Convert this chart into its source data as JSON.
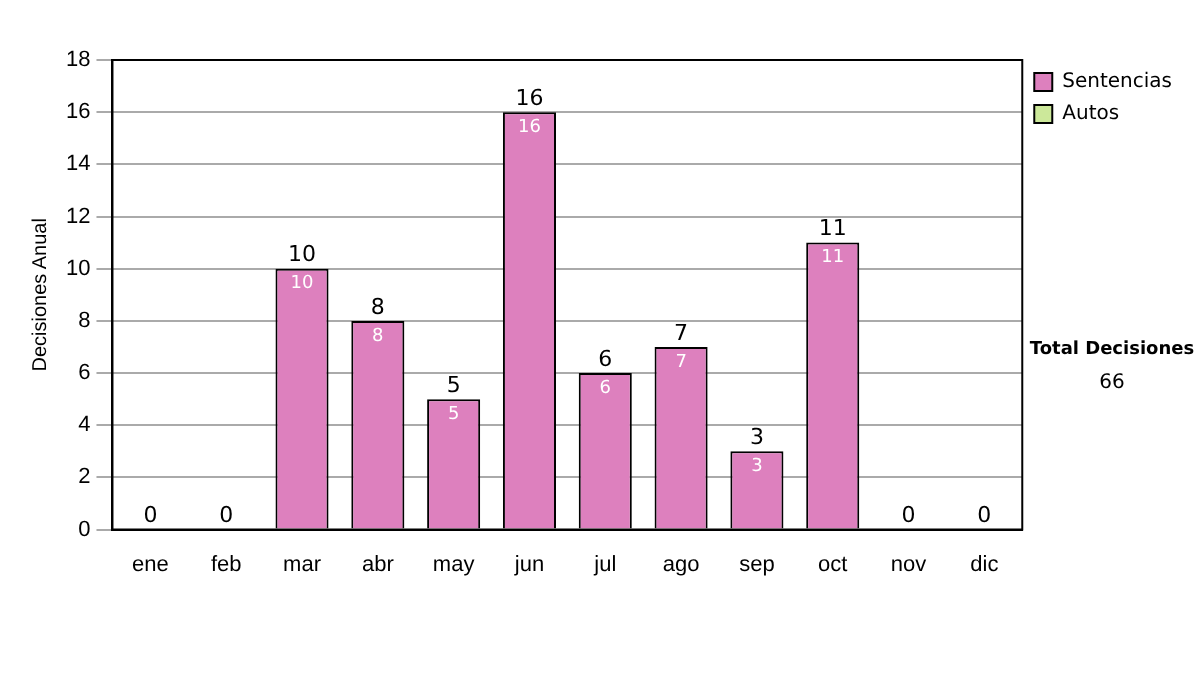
{
  "chart_data": {
    "type": "bar",
    "stacked": true,
    "ylabel": "Decisiones Anual",
    "categories": [
      "ene",
      "feb",
      "mar",
      "abr",
      "may",
      "jun",
      "jul",
      "ago",
      "sep",
      "oct",
      "nov",
      "dic"
    ],
    "series": [
      {
        "name": "Sentencias",
        "color": "#dd80be",
        "values": [
          0,
          0,
          10,
          8,
          5,
          16,
          6,
          7,
          3,
          11,
          0,
          0
        ],
        "value_labels": [
          null,
          null,
          "10",
          "8",
          "5",
          "16",
          "6",
          "7",
          "3",
          "11",
          null,
          null
        ]
      },
      {
        "name": "Autos",
        "color": "#cce89a",
        "values": [
          null,
          null,
          null,
          null,
          null,
          null,
          null,
          null,
          null,
          null,
          null,
          null
        ]
      }
    ],
    "totals": [
      "0",
      "0",
      "10",
      "8",
      "5",
      "16",
      "6",
      "7",
      "3",
      "11",
      "0",
      "0"
    ],
    "ylim": [
      0,
      18
    ],
    "yticks": [
      0,
      2,
      4,
      6,
      8,
      10,
      12,
      14,
      16,
      18
    ],
    "grid": "y",
    "legend": "right",
    "annotations": [
      "Total Decisiones",
      "66"
    ]
  }
}
